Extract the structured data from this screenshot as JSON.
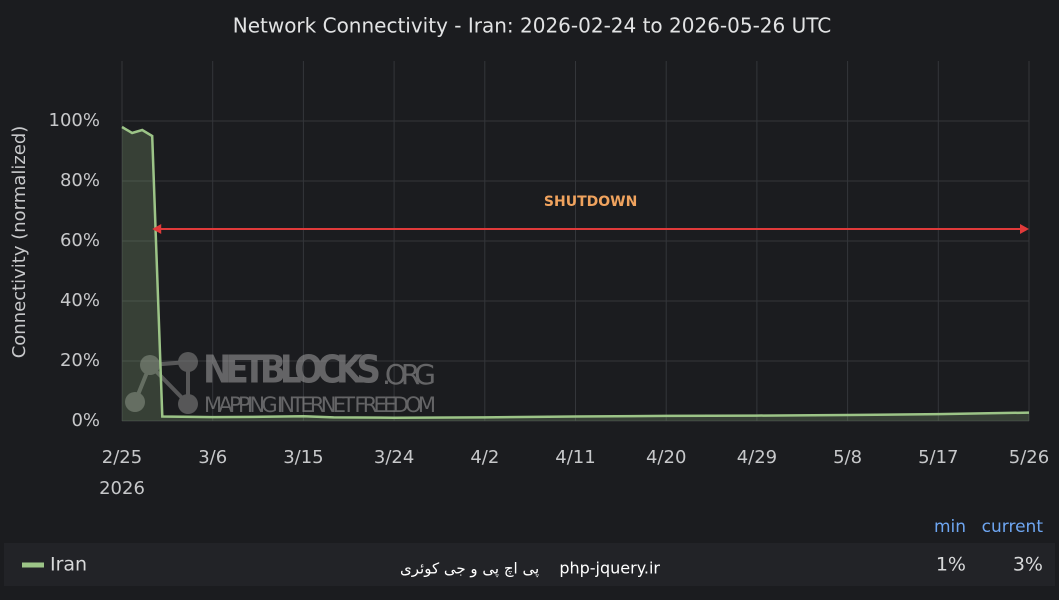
{
  "chart_data": {
    "type": "line",
    "title": "Network Connectivity - Iran: 2026-02-24 to 2026-05-26 UTC",
    "y_axis_label": "Connectivity (normalized)",
    "x": [
      "2026-02-25",
      "2026-02-26",
      "2026-02-27",
      "2026-02-28",
      "2026-03-01",
      "2026-03-06",
      "2026-03-11",
      "2026-03-15",
      "2026-03-18",
      "2026-03-24",
      "2026-04-02",
      "2026-04-11",
      "2026-04-20",
      "2026-04-29",
      "2026-05-08",
      "2026-05-17",
      "2026-05-26"
    ],
    "series": [
      {
        "name": "Iran",
        "color": "#9cc487",
        "values": [
          98,
          96,
          97,
          95,
          1.5,
          1.3,
          1.4,
          1.6,
          1.2,
          1.1,
          1.2,
          1.5,
          1.7,
          1.8,
          2.0,
          2.3,
          2.8
        ]
      }
    ],
    "xlim": [
      "2026-02-25",
      "2026-05-26"
    ],
    "xticks": [
      {
        "value": "2026-02-25",
        "label": "2/25"
      },
      {
        "value": "2026-03-06",
        "label": "3/6"
      },
      {
        "value": "2026-03-15",
        "label": "3/15"
      },
      {
        "value": "2026-03-24",
        "label": "3/24"
      },
      {
        "value": "2026-04-02",
        "label": "4/2"
      },
      {
        "value": "2026-04-11",
        "label": "4/11"
      },
      {
        "value": "2026-04-20",
        "label": "4/20"
      },
      {
        "value": "2026-04-29",
        "label": "4/29"
      },
      {
        "value": "2026-05-08",
        "label": "5/8"
      },
      {
        "value": "2026-05-17",
        "label": "5/17"
      },
      {
        "value": "2026-05-26",
        "label": "5/26"
      }
    ],
    "xtick_year": "2026",
    "ylim": [
      0,
      120
    ],
    "yticks": [
      {
        "value": 0,
        "label": "0%"
      },
      {
        "value": 20,
        "label": "20%"
      },
      {
        "value": 40,
        "label": "40%"
      },
      {
        "value": 60,
        "label": "60%"
      },
      {
        "value": 80,
        "label": "80%"
      },
      {
        "value": 100,
        "label": "100%"
      }
    ],
    "grid": true,
    "annotation": {
      "text": "SHUTDOWN",
      "x_start": "2026-02-28",
      "x_end": "2026-05-26",
      "y": 64,
      "color": "#e03a3a",
      "text_color": "#f0a35e"
    },
    "watermark": {
      "brand": "NETBLOCKS",
      "suffix": ".ORG",
      "tagline": "MAPPING INTERNET FREEDOM"
    },
    "legend": {
      "columns": [
        "min",
        "current"
      ],
      "rows": [
        {
          "name": "Iran",
          "min": "1%",
          "current": "3%"
        }
      ]
    },
    "overlay": {
      "site": "php-jquery.ir",
      "site_name": "پی اچ پی و جی کوئری"
    }
  }
}
